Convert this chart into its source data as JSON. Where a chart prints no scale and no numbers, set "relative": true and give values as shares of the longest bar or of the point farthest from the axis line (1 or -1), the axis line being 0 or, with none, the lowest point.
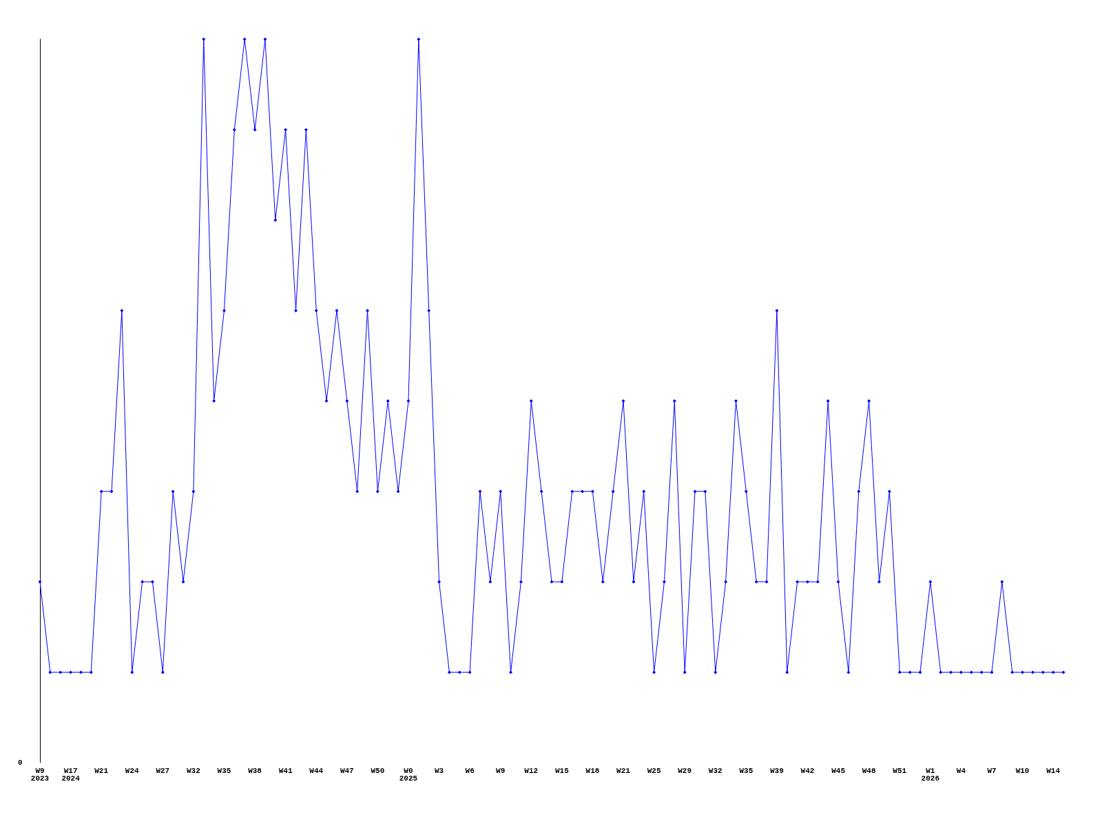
{
  "chart_data": {
    "type": "line",
    "relative": true,
    "marker": "diamond",
    "annotations": [
      "0"
    ],
    "categories": [
      "W9\n2023",
      null,
      null,
      "W17\n2024",
      null,
      null,
      "W21",
      null,
      null,
      "W24",
      null,
      null,
      "W27",
      null,
      null,
      "W32",
      null,
      null,
      "W35",
      null,
      null,
      "W38",
      null,
      null,
      "W41",
      null,
      null,
      "W44",
      null,
      null,
      "W47",
      null,
      null,
      "W50",
      null,
      null,
      "W0\n2025",
      null,
      null,
      "W3",
      null,
      null,
      "W6",
      null,
      null,
      "W9",
      null,
      null,
      "W12",
      null,
      null,
      "W15",
      null,
      null,
      "W18",
      null,
      null,
      "W21",
      null,
      null,
      "W25",
      null,
      null,
      "W29",
      null,
      null,
      "W32",
      null,
      null,
      "W35",
      null,
      null,
      "W39",
      null,
      null,
      "W42",
      null,
      null,
      "W45",
      null,
      null,
      "W48",
      null,
      null,
      "W51",
      null,
      null,
      "W1\n2026",
      null,
      null,
      "W4",
      null,
      null,
      "W7",
      null,
      null,
      "W10",
      null,
      null,
      "W14",
      null
    ],
    "series": [
      {
        "color": "#0000ff",
        "values": [
          0.25,
          0.125,
          0.125,
          0.125,
          0.125,
          0.125,
          0.375,
          0.375,
          0.625,
          0.125,
          0.25,
          0.25,
          0.125,
          0.375,
          0.25,
          0.375,
          1,
          0.5,
          0.625,
          0.875,
          1,
          0.875,
          1,
          0.75,
          0.875,
          0.625,
          0.875,
          0.625,
          0.5,
          0.625,
          0.5,
          0.375,
          0.625,
          0.375,
          0.5,
          0.375,
          0.5,
          1,
          0.625,
          0.25,
          0.125,
          0.125,
          0.125,
          0.375,
          0.25,
          0.375,
          0.125,
          0.25,
          0.5,
          0.375,
          0.25,
          0.25,
          0.375,
          0.375,
          0.375,
          0.25,
          0.375,
          0.5,
          0.25,
          0.375,
          0.125,
          0.25,
          0.5,
          0.125,
          0.375,
          0.375,
          0.125,
          0.25,
          0.5,
          0.375,
          0.25,
          0.25,
          0.625,
          0.125,
          0.25,
          0.25,
          0.25,
          0.5,
          0.25,
          0.125,
          0.375,
          0.5,
          0.25,
          0.375,
          0.125,
          0.125,
          0.125,
          0.25,
          0.125,
          0.125,
          0.125,
          0.125,
          0.125,
          0.125,
          0.25,
          0.125,
          0.125,
          0.125,
          0.125,
          0.125,
          0.125
        ]
      }
    ]
  }
}
